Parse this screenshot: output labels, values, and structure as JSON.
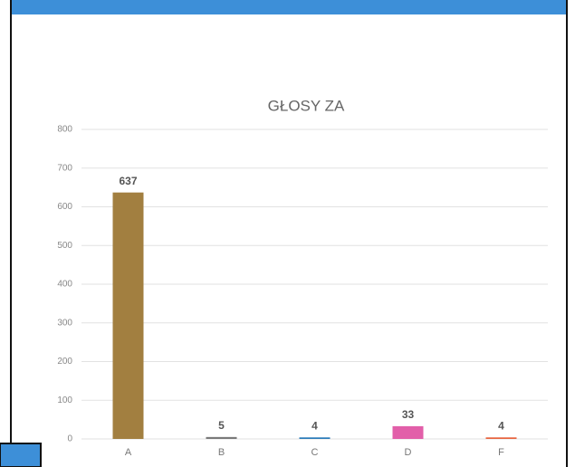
{
  "chart_data": {
    "type": "bar",
    "title": "GŁOSY ZA",
    "categories": [
      "A",
      "B",
      "C",
      "D",
      "F"
    ],
    "values": [
      637,
      5,
      4,
      33,
      4
    ],
    "colors": [
      "#a27f40",
      "#7a7a7a",
      "#2b7bb9",
      "#e25fa9",
      "#e8643e"
    ],
    "ylim": [
      0,
      800
    ],
    "yticks": [
      0,
      100,
      200,
      300,
      400,
      500,
      600,
      700,
      800
    ],
    "grid": true
  }
}
